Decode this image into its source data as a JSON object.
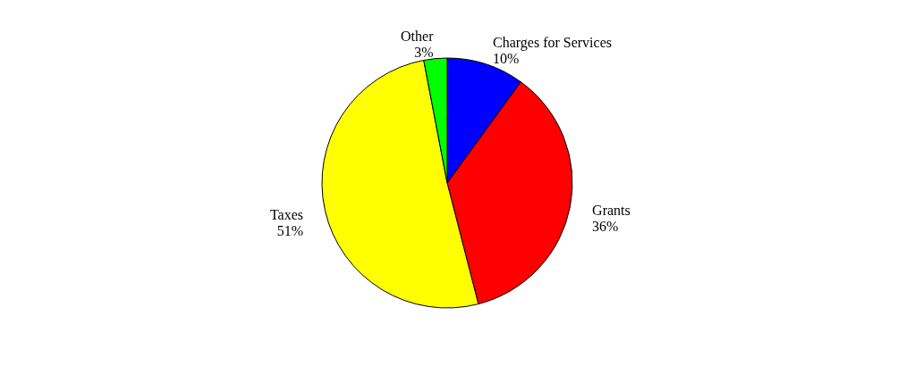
{
  "chart_data": {
    "type": "pie",
    "categories": [
      "Charges for Services",
      "Grants",
      "Taxes",
      "Other"
    ],
    "values": [
      10,
      36,
      51,
      3
    ],
    "value_labels": [
      "10%",
      "36%",
      "51%",
      "3%"
    ],
    "colors": [
      "#0000ff",
      "#ff0000",
      "#ffff00",
      "#00ff00"
    ],
    "legend": false
  }
}
